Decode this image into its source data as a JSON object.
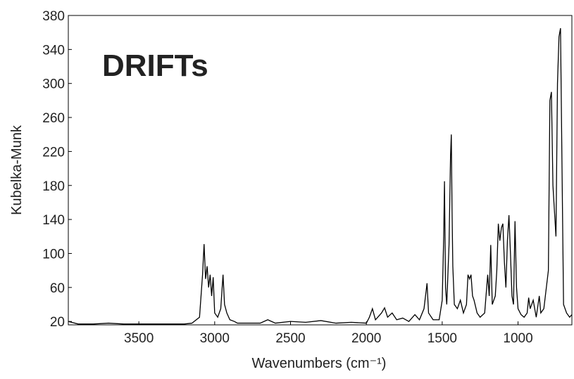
{
  "chart_data": {
    "type": "line",
    "annotation": "DRIFTs",
    "annotation_color": "#1a22cc",
    "xlabel": "Wavenumbers (cm⁻¹)",
    "ylabel": "Kubelka-Munk",
    "xlim": [
      3965,
      645
    ],
    "ylim": [
      16,
      380
    ],
    "xticks": [
      3500,
      3000,
      2500,
      2000,
      1500,
      1000
    ],
    "yticks": [
      20,
      60,
      100,
      140,
      180,
      220,
      260,
      300,
      340,
      380
    ],
    "grid": false,
    "color": "#000000",
    "x": [
      3965,
      3900,
      3800,
      3700,
      3600,
      3500,
      3400,
      3300,
      3200,
      3150,
      3100,
      3080,
      3070,
      3060,
      3050,
      3040,
      3030,
      3020,
      3010,
      3000,
      2980,
      2960,
      2945,
      2935,
      2920,
      2900,
      2870,
      2850,
      2700,
      2650,
      2600,
      2500,
      2400,
      2300,
      2200,
      2100,
      2000,
      1980,
      1960,
      1940,
      1900,
      1880,
      1860,
      1830,
      1800,
      1760,
      1720,
      1680,
      1650,
      1620,
      1600,
      1590,
      1560,
      1520,
      1500,
      1490,
      1485,
      1478,
      1470,
      1455,
      1445,
      1440,
      1435,
      1430,
      1420,
      1400,
      1380,
      1360,
      1340,
      1330,
      1320,
      1310,
      1300,
      1290,
      1270,
      1250,
      1220,
      1200,
      1190,
      1180,
      1170,
      1150,
      1140,
      1130,
      1120,
      1110,
      1100,
      1090,
      1080,
      1070,
      1060,
      1050,
      1040,
      1030,
      1020,
      1010,
      1000,
      980,
      960,
      940,
      930,
      920,
      900,
      880,
      860,
      850,
      830,
      800,
      790,
      780,
      770,
      760,
      750,
      740,
      730,
      720,
      710,
      700,
      680,
      660,
      645
    ],
    "values": [
      20,
      17,
      17,
      18,
      17,
      17,
      17,
      17,
      17,
      18,
      25,
      75,
      111,
      70,
      85,
      60,
      75,
      50,
      72,
      30,
      25,
      35,
      75,
      40,
      30,
      22,
      20,
      18,
      18,
      22,
      18,
      20,
      19,
      21,
      18,
      19,
      18,
      25,
      35,
      22,
      30,
      36,
      25,
      30,
      22,
      24,
      20,
      28,
      22,
      35,
      65,
      30,
      22,
      22,
      45,
      120,
      185,
      60,
      40,
      110,
      215,
      240,
      150,
      85,
      40,
      35,
      45,
      30,
      40,
      75,
      70,
      75,
      50,
      45,
      30,
      25,
      30,
      75,
      50,
      110,
      40,
      50,
      80,
      135,
      115,
      130,
      135,
      90,
      60,
      115,
      145,
      100,
      50,
      40,
      138,
      60,
      35,
      28,
      25,
      30,
      48,
      35,
      45,
      25,
      50,
      30,
      35,
      80,
      280,
      290,
      180,
      150,
      120,
      300,
      355,
      365,
      200,
      40,
      30,
      25,
      28
    ]
  }
}
